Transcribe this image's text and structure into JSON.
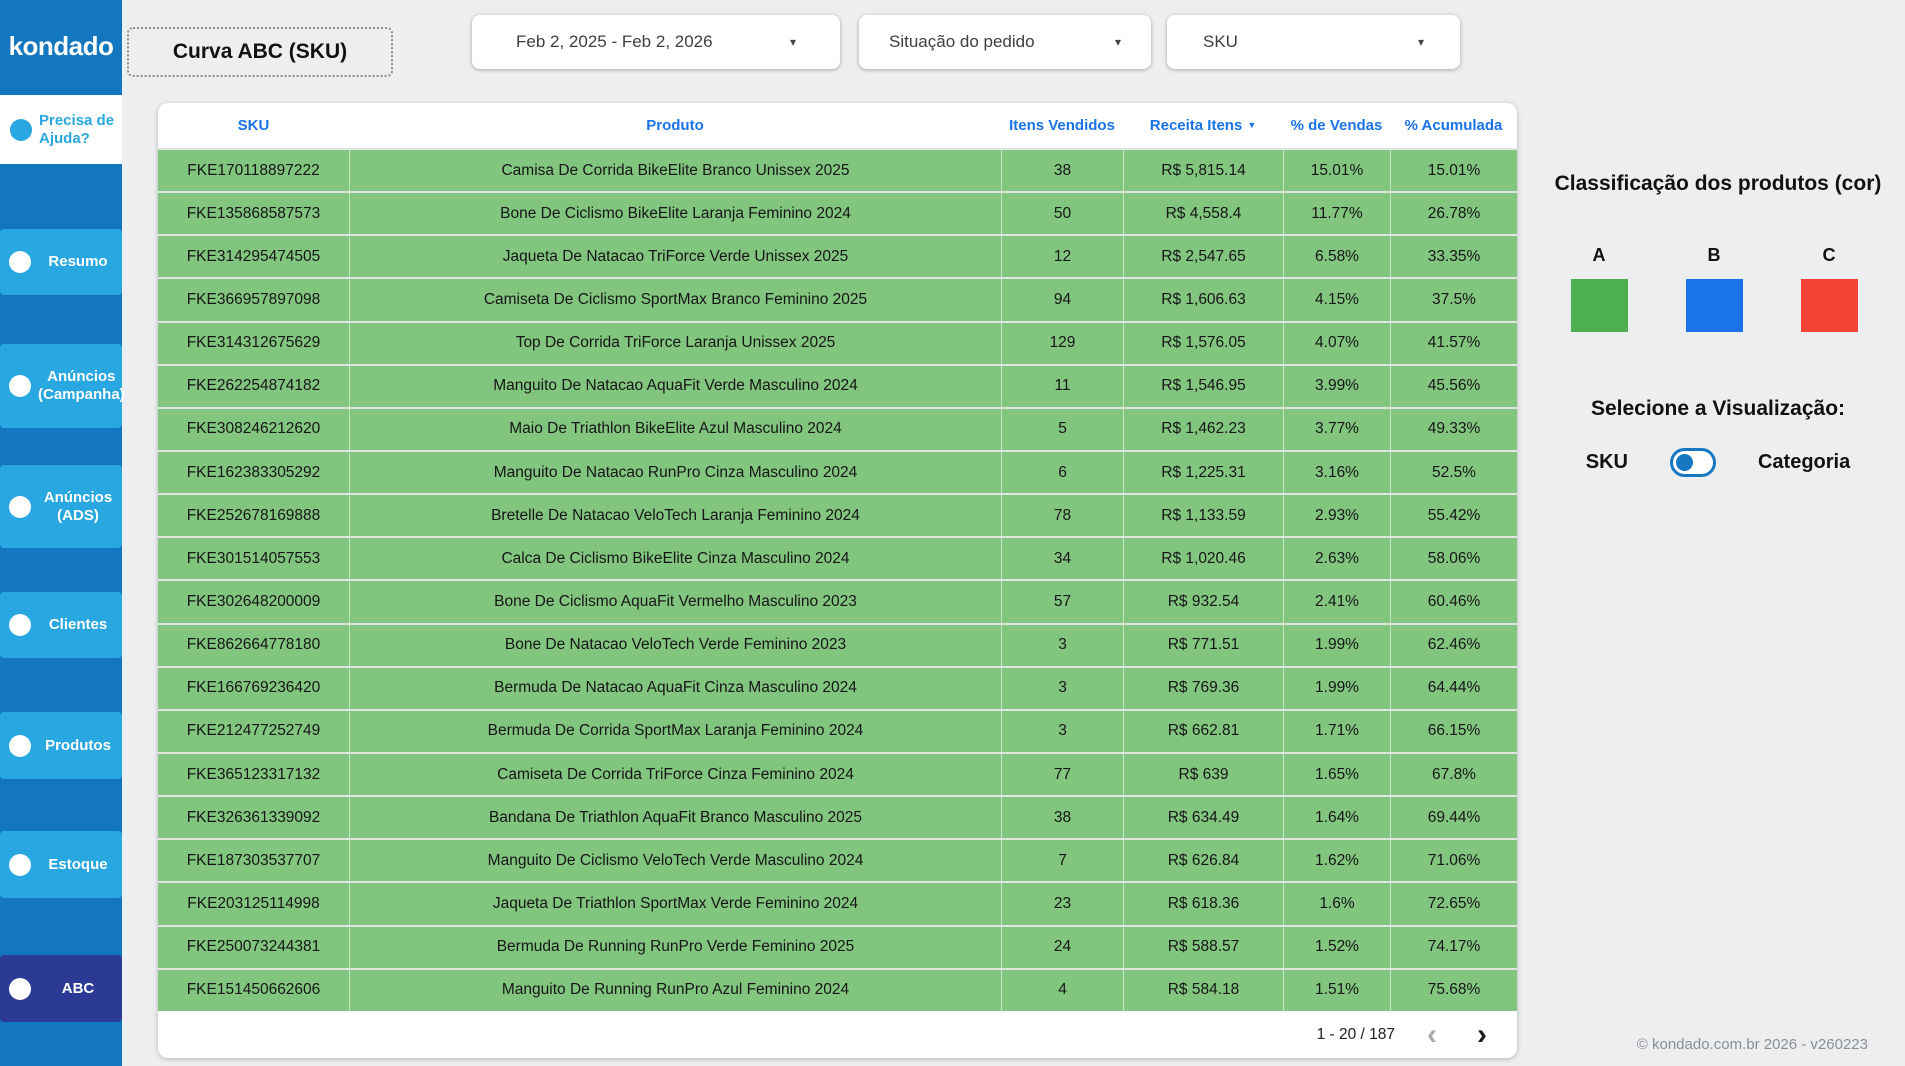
{
  "colors": {
    "sidebar_blue": "#1377bf",
    "sidebar_item_blue": "#29a7e0",
    "sidebar_active_navy": "#2b3a94",
    "table_row_green": "#81c57f",
    "table_header_blue": "#1a73e8",
    "class_a_green": "#4caf50",
    "class_b_blue": "#1a73e8",
    "class_c_red": "#f44336"
  },
  "icons": {
    "caret_down": "▾",
    "sort_desc": "▼",
    "chevron_left": "‹",
    "chevron_right": "›"
  },
  "sidebar": {
    "logo": "kondado",
    "help_label": "Precisa de Ajuda?",
    "items": [
      {
        "id": "resumo",
        "label": "Resumo",
        "active": false
      },
      {
        "id": "anuncios-campanha",
        "label": "Anúncios (Campanha)",
        "active": false
      },
      {
        "id": "anuncios-ads",
        "label": "Anúncios (ADS)",
        "active": false
      },
      {
        "id": "clientes",
        "label": "Clientes",
        "active": false
      },
      {
        "id": "produtos",
        "label": "Produtos",
        "active": false
      },
      {
        "id": "estoque",
        "label": "Estoque",
        "active": false
      },
      {
        "id": "abc",
        "label": "ABC",
        "active": true
      }
    ]
  },
  "header": {
    "title": "Curva ABC (SKU)",
    "date_range": "Feb 2, 2025 - Feb 2, 2026",
    "order_status_filter": "Situação do pedido",
    "sku_filter": "SKU"
  },
  "table": {
    "columns": [
      "SKU",
      "Produto",
      "Itens Vendidos",
      "Receita Itens",
      "% de Vendas",
      "% Acumulada"
    ],
    "sorted_by": "Receita Itens",
    "rows": [
      {
        "sku": "FKE170118897222",
        "produto": "Camisa De Corrida BikeElite Branco Unissex 2025",
        "itens": "38",
        "receita": "R$ 5,815.14",
        "pct_vendas": "15.01%",
        "pct_acumulada": "15.01%"
      },
      {
        "sku": "FKE135868587573",
        "produto": "Bone De Ciclismo BikeElite Laranja Feminino 2024",
        "itens": "50",
        "receita": "R$ 4,558.4",
        "pct_vendas": "11.77%",
        "pct_acumulada": "26.78%"
      },
      {
        "sku": "FKE314295474505",
        "produto": "Jaqueta De Natacao TriForce Verde Unissex 2025",
        "itens": "12",
        "receita": "R$ 2,547.65",
        "pct_vendas": "6.58%",
        "pct_acumulada": "33.35%"
      },
      {
        "sku": "FKE366957897098",
        "produto": "Camiseta De Ciclismo SportMax Branco Feminino 2025",
        "itens": "94",
        "receita": "R$ 1,606.63",
        "pct_vendas": "4.15%",
        "pct_acumulada": "37.5%"
      },
      {
        "sku": "FKE314312675629",
        "produto": "Top De Corrida TriForce Laranja Unissex 2025",
        "itens": "129",
        "receita": "R$ 1,576.05",
        "pct_vendas": "4.07%",
        "pct_acumulada": "41.57%"
      },
      {
        "sku": "FKE262254874182",
        "produto": "Manguito De Natacao AquaFit Verde Masculino 2024",
        "itens": "11",
        "receita": "R$ 1,546.95",
        "pct_vendas": "3.99%",
        "pct_acumulada": "45.56%"
      },
      {
        "sku": "FKE308246212620",
        "produto": "Maio De Triathlon BikeElite Azul Masculino 2024",
        "itens": "5",
        "receita": "R$ 1,462.23",
        "pct_vendas": "3.77%",
        "pct_acumulada": "49.33%"
      },
      {
        "sku": "FKE162383305292",
        "produto": "Manguito De Natacao RunPro Cinza Masculino 2024",
        "itens": "6",
        "receita": "R$ 1,225.31",
        "pct_vendas": "3.16%",
        "pct_acumulada": "52.5%"
      },
      {
        "sku": "FKE252678169888",
        "produto": "Bretelle De Natacao VeloTech Laranja Feminino 2024",
        "itens": "78",
        "receita": "R$ 1,133.59",
        "pct_vendas": "2.93%",
        "pct_acumulada": "55.42%"
      },
      {
        "sku": "FKE301514057553",
        "produto": "Calca De Ciclismo BikeElite Cinza Masculino 2024",
        "itens": "34",
        "receita": "R$ 1,020.46",
        "pct_vendas": "2.63%",
        "pct_acumulada": "58.06%"
      },
      {
        "sku": "FKE302648200009",
        "produto": "Bone De Ciclismo AquaFit Vermelho Masculino 2023",
        "itens": "57",
        "receita": "R$ 932.54",
        "pct_vendas": "2.41%",
        "pct_acumulada": "60.46%"
      },
      {
        "sku": "FKE862664778180",
        "produto": "Bone De Natacao VeloTech Verde Feminino 2023",
        "itens": "3",
        "receita": "R$ 771.51",
        "pct_vendas": "1.99%",
        "pct_acumulada": "62.46%"
      },
      {
        "sku": "FKE166769236420",
        "produto": "Bermuda De Natacao AquaFit Cinza Masculino 2024",
        "itens": "3",
        "receita": "R$ 769.36",
        "pct_vendas": "1.99%",
        "pct_acumulada": "64.44%"
      },
      {
        "sku": "FKE212477252749",
        "produto": "Bermuda De Corrida SportMax Laranja Feminino 2024",
        "itens": "3",
        "receita": "R$ 662.81",
        "pct_vendas": "1.71%",
        "pct_acumulada": "66.15%"
      },
      {
        "sku": "FKE365123317132",
        "produto": "Camiseta De Corrida TriForce Cinza Feminino 2024",
        "itens": "77",
        "receita": "R$ 639",
        "pct_vendas": "1.65%",
        "pct_acumulada": "67.8%"
      },
      {
        "sku": "FKE326361339092",
        "produto": "Bandana De Triathlon AquaFit Branco Masculino 2025",
        "itens": "38",
        "receita": "R$ 634.49",
        "pct_vendas": "1.64%",
        "pct_acumulada": "69.44%"
      },
      {
        "sku": "FKE187303537707",
        "produto": "Manguito De Ciclismo VeloTech Verde Masculino 2024",
        "itens": "7",
        "receita": "R$ 626.84",
        "pct_vendas": "1.62%",
        "pct_acumulada": "71.06%"
      },
      {
        "sku": "FKE203125114998",
        "produto": "Jaqueta De Triathlon SportMax Verde Feminino 2024",
        "itens": "23",
        "receita": "R$ 618.36",
        "pct_vendas": "1.6%",
        "pct_acumulada": "72.65%"
      },
      {
        "sku": "FKE250073244381",
        "produto": "Bermuda De Running RunPro Verde Feminino 2025",
        "itens": "24",
        "receita": "R$ 588.57",
        "pct_vendas": "1.52%",
        "pct_acumulada": "74.17%"
      },
      {
        "sku": "FKE151450662606",
        "produto": "Manguito De Running RunPro Azul Feminino 2024",
        "itens": "4",
        "receita": "R$ 584.18",
        "pct_vendas": "1.51%",
        "pct_acumulada": "75.68%"
      }
    ],
    "pagination": {
      "range_label": "1 - 20 / 187"
    }
  },
  "legend": {
    "title": "Classificação dos produtos (cor)",
    "classes": [
      {
        "label": "A",
        "color": "#4caf50"
      },
      {
        "label": "B",
        "color": "#1a73e8"
      },
      {
        "label": "C",
        "color": "#f44336"
      }
    ],
    "view_selector_title": "Selecione a Visualização:",
    "view_option_left": "SKU",
    "view_option_right": "Categoria"
  },
  "footer": {
    "copyright": "© kondado.com.br 2026 - v260223"
  }
}
